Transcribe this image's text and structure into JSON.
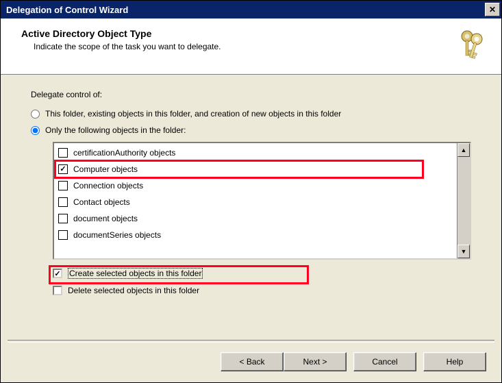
{
  "window": {
    "title": "Delegation of Control Wizard"
  },
  "header": {
    "title": "Active Directory Object Type",
    "subtitle": "Indicate the scope of the task you want to delegate."
  },
  "body": {
    "group_label": "Delegate control of:",
    "radio_all": "This folder, existing objects in this folder, and creation of new objects in this folder",
    "radio_only": "Only the following objects in the folder:",
    "selected_radio": "only",
    "object_types": [
      {
        "label": "certificationAuthority objects",
        "checked": false,
        "highlighted": false
      },
      {
        "label": "Computer objects",
        "checked": true,
        "highlighted": true
      },
      {
        "label": "Connection objects",
        "checked": false,
        "highlighted": false
      },
      {
        "label": "Contact objects",
        "checked": false,
        "highlighted": false
      },
      {
        "label": "document objects",
        "checked": false,
        "highlighted": false
      },
      {
        "label": "documentSeries objects",
        "checked": false,
        "highlighted": false
      }
    ],
    "create_label": "Create selected objects in this folder",
    "create_checked": true,
    "create_highlighted": true,
    "delete_label": "Delete selected objects in this folder",
    "delete_checked": false
  },
  "buttons": {
    "back": "< Back",
    "next": "Next >",
    "cancel": "Cancel",
    "help": "Help"
  },
  "colors": {
    "titlebar_bg": "#0a246a",
    "panel_bg": "#ece9d8",
    "highlight_border": "#ff0020"
  }
}
